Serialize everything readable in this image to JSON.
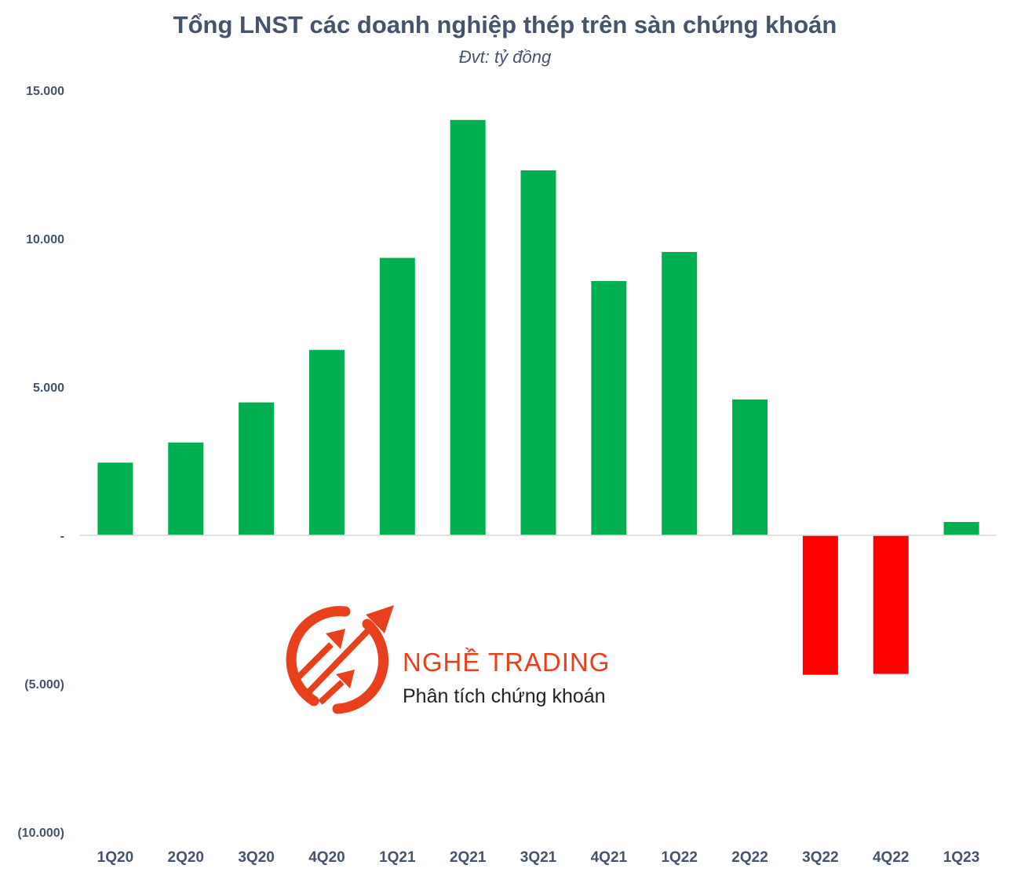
{
  "chart_data": {
    "type": "bar",
    "title": "Tổng LNST các doanh nghiệp thép trên sàn chứng khoán",
    "subtitle": "Đvt: tỷ đồng",
    "categories": [
      "1Q20",
      "2Q20",
      "3Q20",
      "4Q20",
      "1Q21",
      "2Q21",
      "3Q21",
      "4Q21",
      "1Q22",
      "2Q22",
      "3Q22",
      "4Q22",
      "1Q23"
    ],
    "values": [
      2450,
      3130,
      4480,
      6250,
      9350,
      14000,
      12300,
      8570,
      9550,
      4580,
      -4700,
      -4670,
      450
    ],
    "ylim": [
      -10000,
      15000
    ],
    "yticks": [
      15000,
      10000,
      5000,
      0,
      -5000,
      -10000
    ],
    "ytick_labels": [
      "15.000",
      "10.000",
      "5.000",
      "-",
      "(5.000)",
      "(10.000)"
    ],
    "xlabel": "",
    "ylabel": "",
    "grid": false,
    "colors": {
      "positive": "#00b050",
      "negative": "#ff0000",
      "axis": "#d9d9d9",
      "text": "#44546a"
    }
  },
  "logo": {
    "brand": "NGHỀ TRADING",
    "tagline": "Phân tích chứng khoán",
    "icon": "rising-arrows-circle-icon",
    "color": "#e8401c"
  }
}
